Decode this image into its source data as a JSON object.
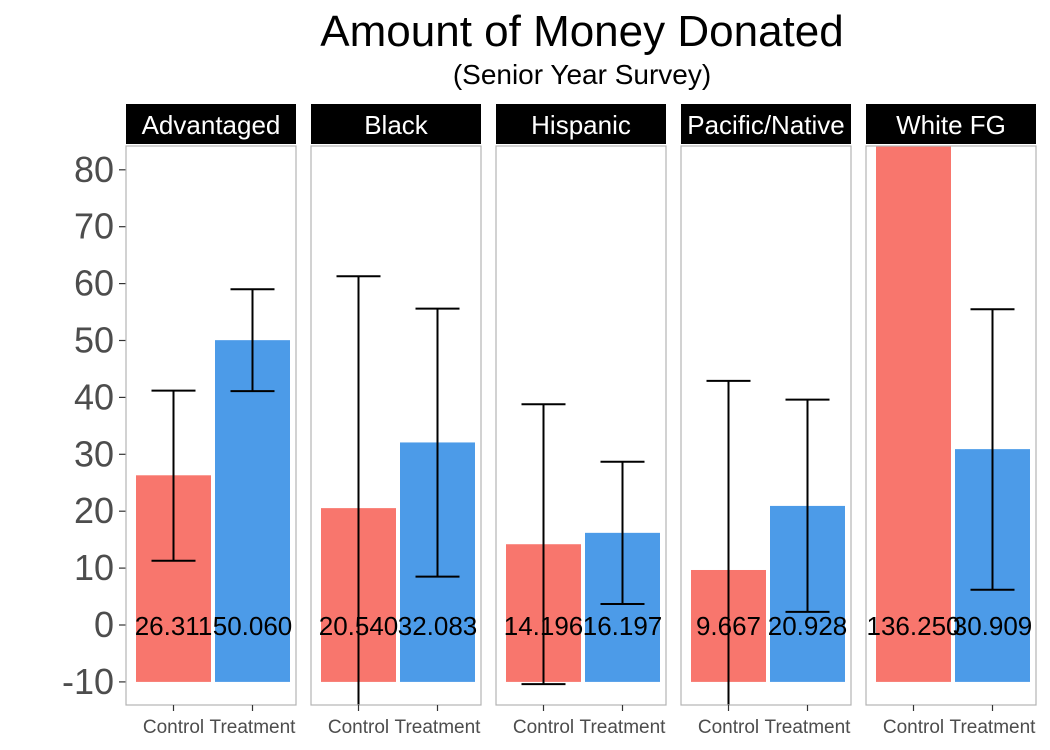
{
  "chart_data": {
    "type": "bar",
    "title": "Amount of Money Donated",
    "subtitle": "(Senior Year Survey)",
    "xlabel": "",
    "ylabel": "",
    "ylim": [
      -10,
      84
    ],
    "y_ticks": [
      "-10",
      "0",
      "10",
      "20",
      "30",
      "40",
      "50",
      "60",
      "70",
      "80"
    ],
    "categories": [
      "Control",
      "Treatment"
    ],
    "colors": {
      "Control": "#F8766D",
      "Treatment": "#4C9BE8"
    },
    "facets": [
      {
        "name": "Advantaged",
        "bars": [
          {
            "category": "Control",
            "value": 26.311,
            "label": "26.311",
            "err_low": 11.3,
            "err_high": 41.2
          },
          {
            "category": "Treatment",
            "value": 50.06,
            "label": "50.060",
            "err_low": 41.1,
            "err_high": 59.0
          }
        ]
      },
      {
        "name": "Black",
        "bars": [
          {
            "category": "Control",
            "value": 20.54,
            "label": "20.540",
            "err_low": -20,
            "err_high": 61.3
          },
          {
            "category": "Treatment",
            "value": 32.083,
            "label": "32.083",
            "err_low": 8.5,
            "err_high": 55.6
          }
        ]
      },
      {
        "name": "Hispanic",
        "bars": [
          {
            "category": "Control",
            "value": 14.196,
            "label": "14.196",
            "err_low": -10.4,
            "err_high": 38.8
          },
          {
            "category": "Treatment",
            "value": 16.197,
            "label": "16.197",
            "err_low": 3.7,
            "err_high": 28.7
          }
        ]
      },
      {
        "name": "Pacific/Native",
        "bars": [
          {
            "category": "Control",
            "value": 9.667,
            "label": "9.667",
            "err_low": -20,
            "err_high": 42.9
          },
          {
            "category": "Treatment",
            "value": 20.928,
            "label": "20.928",
            "err_low": 2.3,
            "err_high": 39.6
          }
        ]
      },
      {
        "name": "White FG",
        "bars": [
          {
            "category": "Control",
            "value": 136.25,
            "label": "136.250",
            "err_low": null,
            "err_high": null
          },
          {
            "category": "Treatment",
            "value": 30.909,
            "label": "30.909",
            "err_low": 6.2,
            "err_high": 55.5
          }
        ]
      }
    ]
  }
}
